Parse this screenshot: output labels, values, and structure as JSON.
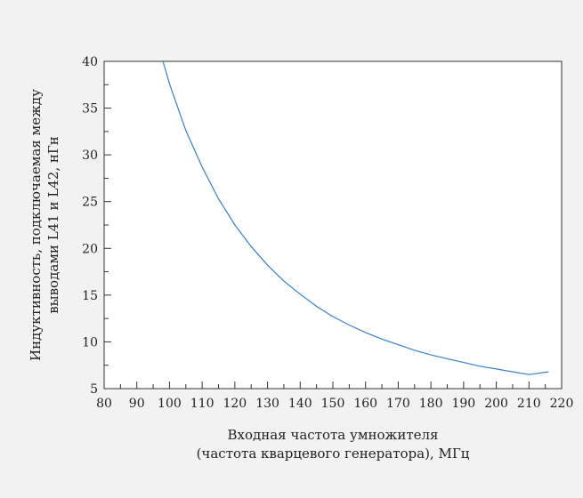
{
  "chart_data": {
    "type": "line",
    "title": "",
    "xlabel": [
      "Входная частота умножителя",
      "(частота кварцевого генератора), МГц"
    ],
    "ylabel": [
      "Индуктивность, подключаемая между",
      "выводами L41 и L42, нГн"
    ],
    "xlim": [
      80,
      220
    ],
    "ylim": [
      5,
      40
    ],
    "x_ticks": [
      80,
      90,
      100,
      110,
      120,
      130,
      140,
      150,
      160,
      170,
      180,
      190,
      200,
      210,
      220
    ],
    "y_ticks": [
      5,
      10,
      15,
      20,
      25,
      30,
      35,
      40
    ],
    "grid": false,
    "line_color": "#3a7fc4",
    "series": [
      {
        "x": [
          98,
          100,
          105,
          110,
          115,
          120,
          125,
          130,
          135,
          140,
          145,
          150,
          155,
          160,
          165,
          170,
          175,
          180,
          185,
          190,
          195,
          200,
          205,
          210,
          216
        ],
        "values": [
          40,
          37.6,
          32.6,
          28.7,
          25.3,
          22.5,
          20.2,
          18.2,
          16.5,
          15.1,
          13.8,
          12.7,
          11.8,
          11.0,
          10.3,
          9.7,
          9.1,
          8.6,
          8.2,
          7.8,
          7.4,
          7.1,
          6.8,
          6.5,
          6.8
        ]
      }
    ]
  }
}
